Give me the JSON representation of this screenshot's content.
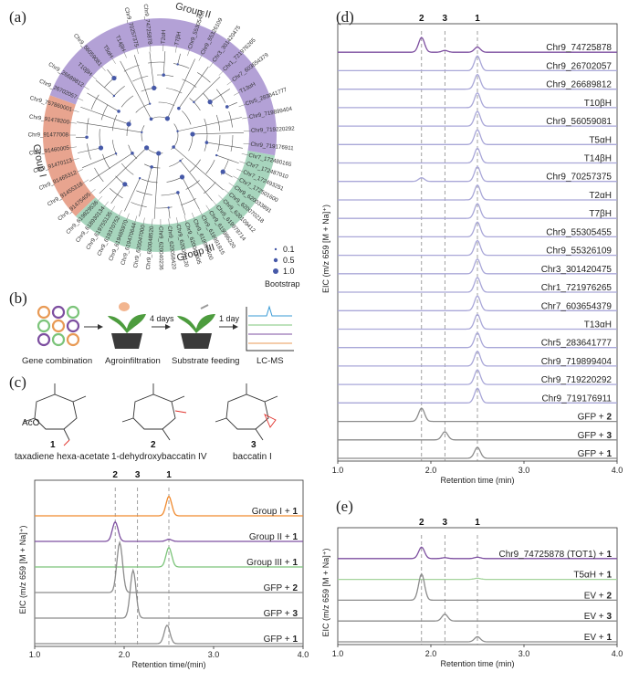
{
  "panels": {
    "a": "(a)",
    "b": "(b)",
    "c": "(c)",
    "d": "(d)",
    "e": "(e)"
  },
  "tree": {
    "groups": [
      {
        "name": "Group I",
        "color": "#e8a48f"
      },
      {
        "name": "Group II",
        "color": "#b3a1d6"
      },
      {
        "name": "Group III",
        "color": "#a7d5bd"
      }
    ],
    "highlight_color": "#e02020",
    "leaves_group1": [
      "Chr9_91475405",
      "Chr9_91455318",
      "Chr9_91465312",
      "Chr9_91470113",
      "Chr9_91460005",
      "Chr9_91477008",
      "Chr9_91478200",
      "Chr9_757860001"
    ],
    "leaves_group2": [
      "Chr9_26702057",
      "Chr9_26689812",
      "T10βH",
      "Chr9_56059081",
      "T5αH",
      "T14βH",
      "Chr9_70257375",
      "Chr9_74725878",
      "T2αH",
      "T7βH",
      "Chr9_55305455",
      "Chr9_55326109",
      "Chr3_301420475",
      "Chr1_721976265",
      "Chr7_603654379",
      "T13αH",
      "Chr5_283641777",
      "Chr9_719899404",
      "Chr9_719220292",
      "Chr9_719176911"
    ],
    "leaves_group3": [
      "Chr7_172480165",
      "Chr7_172487010",
      "Chr7_172493251",
      "Chr7_172501600",
      "Chr9_620033891",
      "Chr9_620070218",
      "Chr9_620109412",
      "Chr9_619978714",
      "Chr9_619986220",
      "Chr9_619991815",
      "Chr9_619999400",
      "Chr9_620040905",
      "Chr9_620051120",
      "Chr9_620058420",
      "Chr9_620040236",
      "Chr9_620048520",
      "Chr9_620047000",
      "Chr9_619470644",
      "Chr9_619485970",
      "Chr9_619370752",
      "Chr9_619755135",
      "Chr9_618930134",
      "Chr9_619829536"
    ],
    "legend_values": [
      "0.1",
      "0.5",
      "1.0"
    ],
    "legend_title": "Bootstrap"
  },
  "workflow": {
    "steps": [
      "Gene combination",
      "Agroinfiltration",
      "Substrate feeding",
      "LC-MS"
    ],
    "arrow_labels": [
      "4 days",
      "1 day"
    ]
  },
  "compounds": [
    {
      "number": "1",
      "name": "taxadiene hexa-acetate"
    },
    {
      "number": "2",
      "name": "1-dehydroxybaccatin IV"
    },
    {
      "number": "3",
      "name": "baccatin I"
    }
  ],
  "chart_data": [
    {
      "id": "c",
      "type": "line",
      "xlabel": "Retention time/(min)",
      "ylabel": "EIC (m/z 659 [M + Na]⁺)",
      "xlim": [
        1.0,
        4.0
      ],
      "xticks": [
        "1.0",
        "2.0",
        "3.0",
        "4.0"
      ],
      "reference_lines": [
        1.9,
        2.15,
        2.5
      ],
      "top_labels": [
        "2",
        "3",
        "1"
      ],
      "top_label_x": [
        1.9,
        2.15,
        2.5
      ],
      "traces": [
        {
          "name": "Group I + 1",
          "label_main": "Group I + ",
          "label_bold": "1",
          "color": "#f08a2e",
          "peaks": [
            {
              "x": 2.5,
              "h": 0.9
            }
          ]
        },
        {
          "name": "Group II + 1",
          "label_main": "Group II + ",
          "label_bold": "1",
          "color": "#7d4fa0",
          "peaks": [
            {
              "x": 1.9,
              "h": 0.9
            },
            {
              "x": 2.5,
              "h": 0.1
            }
          ]
        },
        {
          "name": "Group III + 1",
          "label_main": "Group III + ",
          "label_bold": "1",
          "color": "#7cc47a",
          "peaks": [
            {
              "x": 2.5,
              "h": 0.9
            }
          ]
        },
        {
          "name": "GFP + 2",
          "label_main": "GFP + ",
          "label_bold": "2",
          "color": "#8c8c8c",
          "peaks": [
            {
              "x": 1.95,
              "h": 2.3
            }
          ]
        },
        {
          "name": "GFP + 3",
          "label_main": "GFP + ",
          "label_bold": "3",
          "color": "#8c8c8c",
          "peaks": [
            {
              "x": 2.1,
              "h": 2.2
            }
          ]
        },
        {
          "name": "GFP + 1",
          "label_main": "GFP + ",
          "label_bold": "1",
          "color": "#8c8c8c",
          "peaks": [
            {
              "x": 2.48,
              "h": 0.85
            }
          ]
        }
      ]
    },
    {
      "id": "d",
      "type": "line",
      "xlabel": "Retention time (min)",
      "ylabel": "EIC (m/z 659 [M + Na]⁺)",
      "xlim": [
        1.0,
        4.0
      ],
      "xticks": [
        "1.0",
        "2.0",
        "3.0",
        "4.0"
      ],
      "reference_lines": [
        1.9,
        2.15,
        2.5
      ],
      "top_labels": [
        "2",
        "3",
        "1"
      ],
      "top_label_x": [
        1.9,
        2.15,
        2.5
      ],
      "traces": [
        {
          "name": "Chr9_74725878",
          "label_main": "Chr9_74725878",
          "label_bold": "",
          "color": "#7d4fa0",
          "peaks": [
            {
              "x": 1.9,
              "h": 1.0
            },
            {
              "x": 2.15,
              "h": 0.12
            },
            {
              "x": 2.5,
              "h": 0.35
            }
          ]
        },
        {
          "name": "Chr9_26702057",
          "label_main": "Chr9_26702057",
          "label_bold": "",
          "color": "#a9a7d8",
          "peaks": [
            {
              "x": 2.5,
              "h": 1.0
            }
          ]
        },
        {
          "name": "Chr9_26689812",
          "label_main": "Chr9_26689812",
          "label_bold": "",
          "color": "#a9a7d8",
          "peaks": [
            {
              "x": 2.5,
              "h": 1.0
            }
          ]
        },
        {
          "name": "T10βH",
          "label_main": "T10βH",
          "label_bold": "",
          "color": "#a9a7d8",
          "peaks": [
            {
              "x": 2.5,
              "h": 1.0
            }
          ]
        },
        {
          "name": "Chr9_56059081",
          "label_main": "Chr9_56059081",
          "label_bold": "",
          "color": "#a9a7d8",
          "peaks": [
            {
              "x": 2.5,
              "h": 1.0
            }
          ]
        },
        {
          "name": "T5αH",
          "label_main": "T5αH",
          "label_bold": "",
          "color": "#a9a7d8",
          "peaks": [
            {
              "x": 2.5,
              "h": 1.0
            }
          ]
        },
        {
          "name": "T14βH",
          "label_main": "T14βH",
          "label_bold": "",
          "color": "#a9a7d8",
          "peaks": [
            {
              "x": 2.5,
              "h": 1.0
            }
          ]
        },
        {
          "name": "Chr9_70257375",
          "label_main": "Chr9_70257375",
          "label_bold": "",
          "color": "#a9a7d8",
          "peaks": [
            {
              "x": 1.9,
              "h": 0.25
            },
            {
              "x": 2.5,
              "h": 1.0
            }
          ]
        },
        {
          "name": "T2αH",
          "label_main": "T2αH",
          "label_bold": "",
          "color": "#a9a7d8",
          "peaks": [
            {
              "x": 2.5,
              "h": 1.0
            }
          ]
        },
        {
          "name": "T7βH",
          "label_main": "T7βH",
          "label_bold": "",
          "color": "#a9a7d8",
          "peaks": [
            {
              "x": 2.5,
              "h": 1.0
            }
          ]
        },
        {
          "name": "Chr9_55305455",
          "label_main": "Chr9_55305455",
          "label_bold": "",
          "color": "#a9a7d8",
          "peaks": [
            {
              "x": 2.5,
              "h": 1.0
            }
          ]
        },
        {
          "name": "Chr9_55326109",
          "label_main": "Chr9_55326109",
          "label_bold": "",
          "color": "#a9a7d8",
          "peaks": [
            {
              "x": 2.5,
              "h": 1.0
            }
          ]
        },
        {
          "name": "Chr3_301420475",
          "label_main": "Chr3_301420475",
          "label_bold": "",
          "color": "#a9a7d8",
          "peaks": [
            {
              "x": 2.5,
              "h": 1.0
            }
          ]
        },
        {
          "name": "Chr1_721976265",
          "label_main": "Chr1_721976265",
          "label_bold": "",
          "color": "#a9a7d8",
          "peaks": [
            {
              "x": 2.5,
              "h": 1.0
            }
          ]
        },
        {
          "name": "Chr7_603654379",
          "label_main": "Chr7_603654379",
          "label_bold": "",
          "color": "#a9a7d8",
          "peaks": [
            {
              "x": 2.5,
              "h": 1.0
            }
          ]
        },
        {
          "name": "T13αH",
          "label_main": "T13αH",
          "label_bold": "",
          "color": "#a9a7d8",
          "peaks": [
            {
              "x": 2.5,
              "h": 1.0
            }
          ]
        },
        {
          "name": "Chr5_283641777",
          "label_main": "Chr5_283641777",
          "label_bold": "",
          "color": "#a9a7d8",
          "peaks": [
            {
              "x": 2.5,
              "h": 1.0
            }
          ]
        },
        {
          "name": "Chr9_719899404",
          "label_main": "Chr9_719899404",
          "label_bold": "",
          "color": "#a9a7d8",
          "peaks": [
            {
              "x": 2.5,
              "h": 1.0
            }
          ]
        },
        {
          "name": "Chr9_719220292",
          "label_main": "Chr9_719220292",
          "label_bold": "",
          "color": "#a9a7d8",
          "peaks": [
            {
              "x": 2.5,
              "h": 1.0
            }
          ]
        },
        {
          "name": "Chr9_719176911",
          "label_main": "Chr9_719176911",
          "label_bold": "",
          "color": "#a9a7d8",
          "peaks": [
            {
              "x": 2.5,
              "h": 1.0
            }
          ]
        },
        {
          "name": "GFP + 2",
          "label_main": "GFP + ",
          "label_bold": "2",
          "color": "#8c8c8c",
          "peaks": [
            {
              "x": 1.9,
              "h": 0.9
            }
          ]
        },
        {
          "name": "GFP + 3",
          "label_main": "GFP + ",
          "label_bold": "3",
          "color": "#8c8c8c",
          "peaks": [
            {
              "x": 2.15,
              "h": 0.55
            }
          ]
        },
        {
          "name": "GFP + 1",
          "label_main": "GFP + ",
          "label_bold": "1",
          "color": "#8c8c8c",
          "peaks": [
            {
              "x": 2.5,
              "h": 0.75
            }
          ]
        }
      ]
    },
    {
      "id": "e",
      "type": "line",
      "xlabel": "Retention time (min)",
      "ylabel": "EIC (m/z 659 [M + Na]⁺)",
      "xlim": [
        1.0,
        4.0
      ],
      "xticks": [
        "1.0",
        "2.0",
        "3.0",
        "4.0"
      ],
      "reference_lines": [
        1.9,
        2.15,
        2.5
      ],
      "top_labels": [
        "2",
        "3",
        "1"
      ],
      "top_label_x": [
        1.9,
        2.15,
        2.5
      ],
      "traces": [
        {
          "name": "Chr9_74725878 (TOT1) + 1",
          "label_main": "Chr9_74725878 (TOT1) + ",
          "label_bold": "1",
          "color": "#7d4fa0",
          "peaks": [
            {
              "x": 1.9,
              "h": 1.0
            },
            {
              "x": 2.15,
              "h": 0.08
            },
            {
              "x": 2.5,
              "h": 0.12
            }
          ]
        },
        {
          "name": "T5αH + 1",
          "label_main": "T5αH + ",
          "label_bold": "1",
          "color": "#a4d49c",
          "peaks": [
            {
              "x": 2.5,
              "h": 0.1
            }
          ]
        },
        {
          "name": "EV + 2",
          "label_main": "EV + ",
          "label_bold": "2",
          "color": "#8c8c8c",
          "peaks": [
            {
              "x": 1.9,
              "h": 2.3
            }
          ]
        },
        {
          "name": "EV + 3",
          "label_main": "EV + ",
          "label_bold": "3",
          "color": "#8c8c8c",
          "peaks": [
            {
              "x": 2.15,
              "h": 0.6
            }
          ]
        },
        {
          "name": "EV + 1",
          "label_main": "EV + ",
          "label_bold": "1",
          "color": "#8c8c8c",
          "peaks": [
            {
              "x": 2.5,
              "h": 0.45
            }
          ]
        }
      ]
    }
  ]
}
